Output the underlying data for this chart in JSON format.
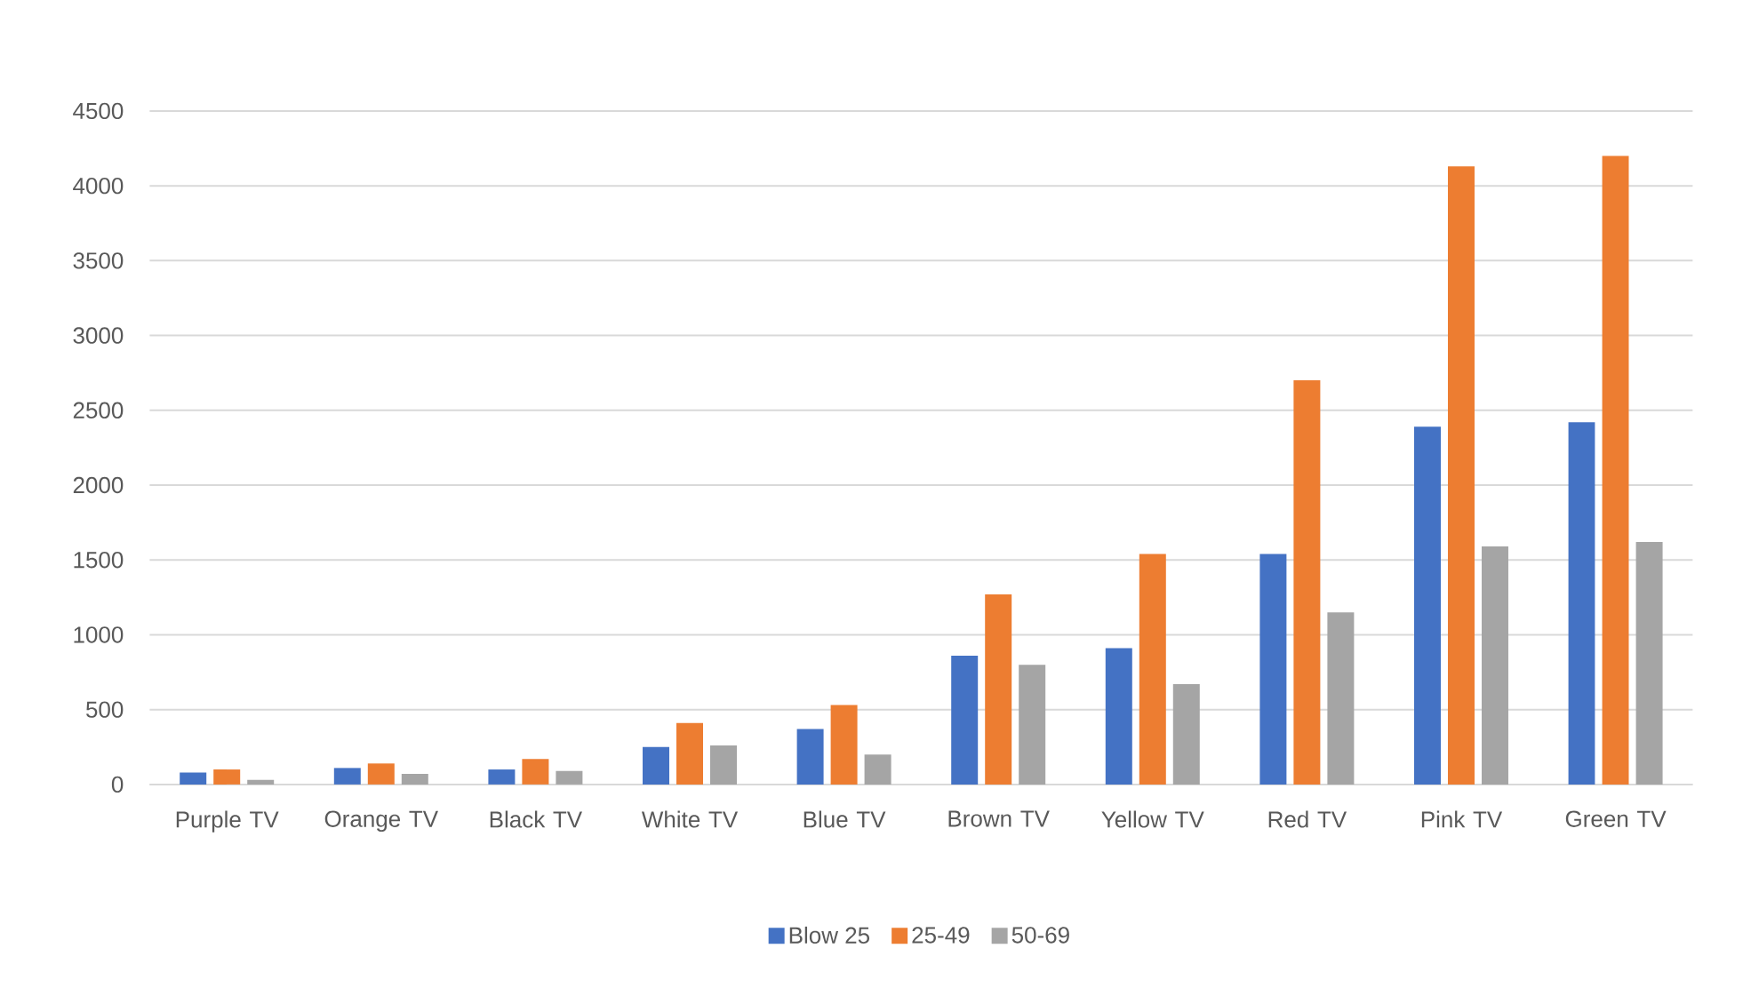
{
  "chart_data": {
    "type": "bar",
    "categories": [
      "Purple TV",
      "Orange TV",
      "Black TV",
      "White TV",
      "Blue TV",
      "Brown TV",
      "Yellow TV",
      "Red TV",
      "Pink TV",
      "Green TV"
    ],
    "series": [
      {
        "name": "Blow 25",
        "color": "#4472c4",
        "values": [
          80,
          110,
          100,
          250,
          370,
          860,
          910,
          1540,
          2390,
          2420
        ]
      },
      {
        "name": "25-49",
        "color": "#ed7d31",
        "values": [
          100,
          140,
          170,
          410,
          530,
          1270,
          1540,
          2700,
          4130,
          4200
        ]
      },
      {
        "name": "50-69",
        "color": "#a5a5a5",
        "values": [
          30,
          70,
          90,
          260,
          200,
          800,
          670,
          1150,
          1590,
          1620
        ]
      }
    ],
    "ylim": [
      0,
      4500
    ],
    "yticks": [
      0,
      500,
      1000,
      1500,
      2000,
      2500,
      3000,
      3500,
      4000,
      4500
    ],
    "grid": "y",
    "legend": "bottom"
  }
}
